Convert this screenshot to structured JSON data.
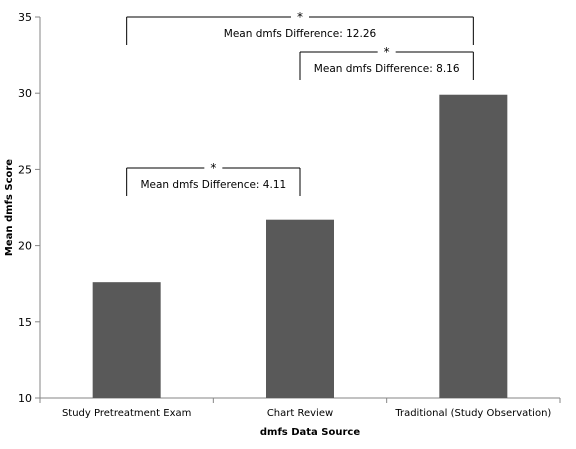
{
  "chart_data": {
    "type": "bar",
    "xlabel": "dmfs Data Source",
    "ylabel": "Mean dmfs Score",
    "ylim": [
      10,
      35
    ],
    "yticks": [
      10,
      15,
      20,
      25,
      30,
      35
    ],
    "grid": false,
    "categories": [
      "Study Pretreatment Exam",
      "Chart Review",
      "Traditional (Study Observation)"
    ],
    "values": [
      17.6,
      21.7,
      29.9
    ],
    "bar_color": "#595959",
    "annotations": [
      {
        "from": 0,
        "to": 2,
        "star": "*",
        "label": "Mean dmfs Difference: 12.26"
      },
      {
        "from": 1,
        "to": 2,
        "star": "*",
        "label": "Mean dmfs Difference: 8.16"
      },
      {
        "from": 0,
        "to": 1,
        "star": "*",
        "label": "Mean dmfs Difference: 4.11"
      }
    ]
  }
}
